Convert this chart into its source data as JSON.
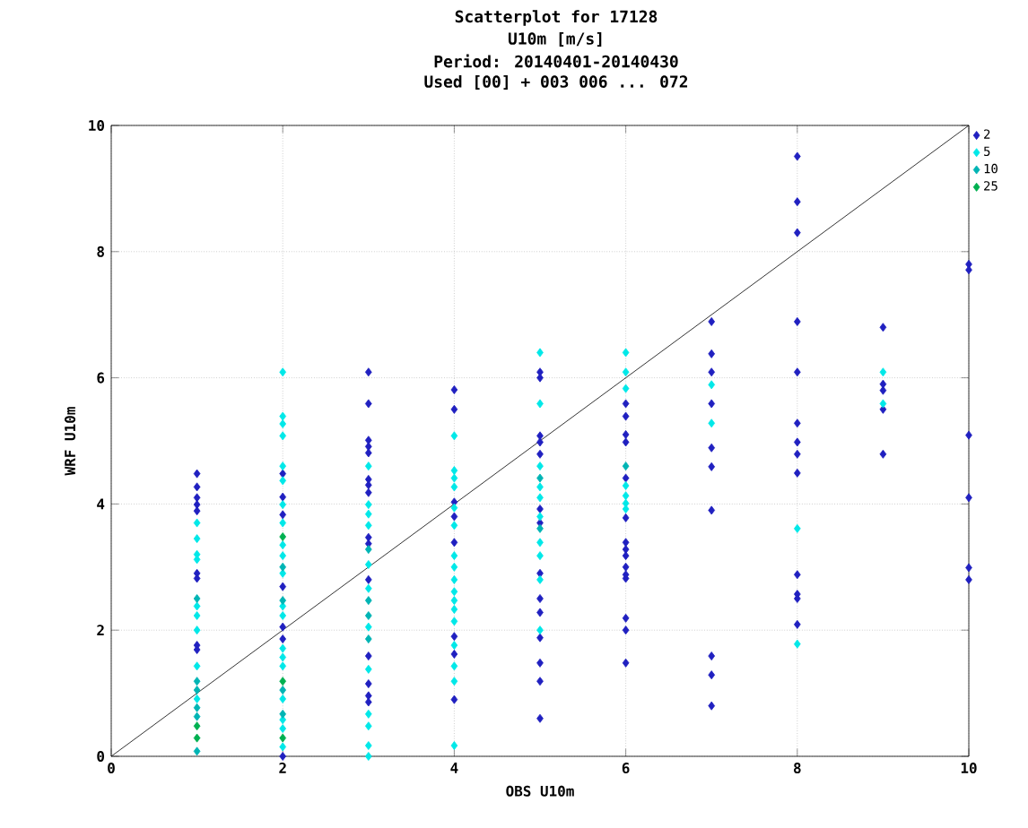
{
  "chart_data": {
    "type": "scatter",
    "title": "Scatterplot for    17128",
    "subtitle": "U10m [m/s]",
    "annotations": [
      "Period: 20140401-20140430",
      "Used [00] + 003 006 ... 072"
    ],
    "xlabel": "OBS U10m",
    "ylabel": "WRF U10m",
    "xlim": [
      0,
      10
    ],
    "ylim": [
      0,
      10
    ],
    "xticks": [
      0,
      2,
      4,
      6,
      8,
      10
    ],
    "yticks": [
      0,
      2,
      4,
      6,
      8,
      10
    ],
    "grid": true,
    "marker": "diamond",
    "legend": "right",
    "series": [
      {
        "name": "2",
        "color": "#2020c0",
        "x": [
          1,
          1,
          1,
          1,
          1,
          1,
          1,
          1,
          1,
          2,
          2,
          2,
          2,
          2,
          2,
          2,
          3,
          3,
          3,
          3,
          3,
          3,
          3,
          3,
          3,
          3,
          3,
          3,
          3,
          3,
          3,
          4,
          4,
          4,
          4,
          4,
          4,
          4,
          4,
          5,
          5,
          5,
          5,
          5,
          5,
          5,
          5,
          5,
          5,
          5,
          5,
          5,
          5,
          6,
          6,
          6,
          6,
          6,
          6,
          6,
          6,
          6,
          6,
          6,
          6,
          6,
          6,
          6,
          7,
          7,
          7,
          7,
          7,
          7,
          7,
          7,
          7,
          7,
          8,
          8,
          8,
          8,
          8,
          8,
          8,
          8,
          8,
          8,
          8,
          8,
          8,
          9,
          9,
          9,
          9,
          9,
          10,
          10,
          10,
          10,
          10,
          10
        ],
        "values": [
          4.48,
          4.27,
          4.1,
          3.99,
          3.89,
          2.9,
          2.82,
          1.76,
          1.69,
          4.48,
          4.11,
          3.83,
          2.69,
          2.05,
          1.86,
          0.0,
          6.09,
          5.59,
          5.01,
          4.91,
          4.81,
          4.39,
          4.3,
          4.18,
          3.47,
          3.37,
          2.8,
          1.59,
          1.15,
          0.96,
          0.86,
          5.81,
          5.5,
          4.03,
          3.8,
          3.39,
          1.9,
          1.62,
          0.9,
          6.09,
          6.0,
          5.08,
          4.98,
          4.79,
          3.92,
          3.7,
          2.9,
          2.5,
          2.28,
          1.88,
          1.48,
          1.19,
          0.6,
          5.59,
          5.39,
          5.1,
          4.98,
          4.41,
          3.78,
          3.39,
          3.28,
          3.18,
          3.0,
          2.88,
          2.82,
          2.19,
          2.0,
          1.48,
          6.89,
          6.38,
          6.09,
          5.59,
          4.89,
          4.59,
          3.9,
          1.59,
          1.29,
          0.8,
          9.51,
          8.79,
          8.3,
          6.89,
          6.09,
          5.28,
          4.98,
          4.79,
          4.49,
          2.88,
          2.57,
          2.5,
          2.09,
          6.8,
          5.9,
          5.8,
          5.5,
          4.79,
          7.8,
          7.71,
          5.09,
          4.1,
          2.99,
          2.8
        ]
      },
      {
        "name": "5",
        "color": "#00e8e8",
        "x": [
          1,
          1,
          1,
          1,
          1,
          1,
          1,
          1,
          1,
          2,
          2,
          2,
          2,
          2,
          2,
          2,
          2,
          2,
          2,
          2,
          2,
          2,
          2,
          2,
          2,
          2,
          2,
          2,
          2,
          3,
          3,
          3,
          3,
          3,
          3,
          3,
          3,
          3,
          3,
          3,
          3,
          4,
          4,
          4,
          4,
          4,
          4,
          4,
          4,
          4,
          4,
          4,
          4,
          4,
          4,
          4,
          4,
          4,
          5,
          5,
          5,
          5,
          5,
          5,
          5,
          5,
          5,
          5,
          6,
          6,
          6,
          6,
          6,
          6,
          6,
          7,
          7,
          8,
          8,
          9,
          9
        ],
        "values": [
          3.7,
          3.45,
          3.2,
          3.12,
          2.38,
          2.23,
          2.0,
          1.43,
          0.91,
          6.09,
          5.39,
          5.27,
          5.08,
          4.6,
          4.37,
          3.99,
          3.7,
          3.35,
          3.18,
          2.9,
          2.38,
          2.23,
          1.71,
          1.57,
          1.43,
          0.91,
          0.58,
          0.44,
          0.15,
          4.6,
          3.99,
          3.84,
          3.66,
          3.04,
          2.66,
          2.05,
          1.38,
          0.67,
          0.48,
          0.17,
          0.0,
          5.08,
          4.53,
          4.41,
          4.27,
          3.94,
          3.66,
          3.18,
          3.0,
          2.8,
          2.61,
          2.47,
          2.33,
          2.14,
          1.76,
          1.43,
          1.19,
          0.17,
          6.4,
          5.59,
          4.6,
          4.27,
          4.1,
          3.8,
          3.39,
          3.18,
          2.8,
          2.0,
          6.4,
          6.09,
          5.83,
          4.29,
          4.13,
          4.01,
          3.92,
          5.89,
          5.28,
          3.61,
          1.78,
          6.09,
          5.59
        ]
      },
      {
        "name": "10",
        "color": "#00b4b4",
        "x": [
          1,
          1,
          1,
          1,
          1,
          1,
          2,
          2,
          2,
          2,
          3,
          3,
          3,
          3,
          5,
          5,
          6
        ],
        "values": [
          2.5,
          1.19,
          1.05,
          0.77,
          0.63,
          0.08,
          3.0,
          2.47,
          1.05,
          0.67,
          3.28,
          2.47,
          2.23,
          1.86,
          4.41,
          3.61,
          4.6
        ]
      },
      {
        "name": "25",
        "color": "#00b050",
        "x": [
          1,
          1,
          2,
          2,
          2
        ],
        "values": [
          0.48,
          0.29,
          3.48,
          1.19,
          0.29
        ]
      },
      {
        "type": "line",
        "marker": "none",
        "color": "#000000",
        "x": [
          0,
          10
        ],
        "values": [
          0,
          10
        ]
      }
    ]
  }
}
